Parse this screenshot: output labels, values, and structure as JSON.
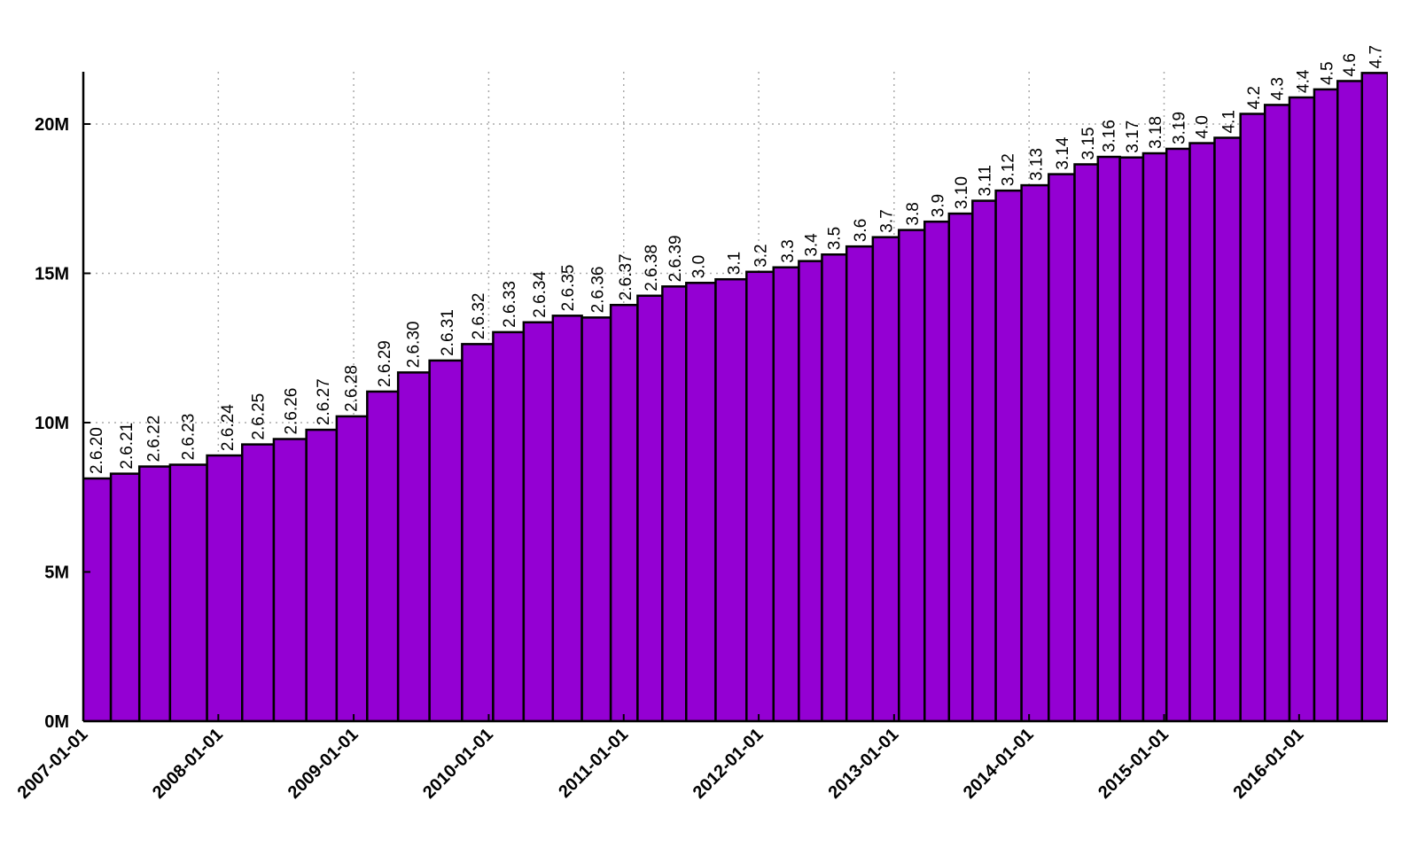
{
  "chart_data": {
    "type": "bar",
    "categories": [
      "2.6.20",
      "2.6.21",
      "2.6.22",
      "2.6.23",
      "2.6.24",
      "2.6.25",
      "2.6.26",
      "2.6.27",
      "2.6.28",
      "2.6.29",
      "2.6.30",
      "2.6.31",
      "2.6.32",
      "2.6.33",
      "2.6.34",
      "2.6.35",
      "2.6.36",
      "2.6.37",
      "2.6.38",
      "2.6.39",
      "3.0",
      "3.1",
      "3.2",
      "3.3",
      "3.4",
      "3.5",
      "3.6",
      "3.7",
      "3.8",
      "3.9",
      "3.10",
      "3.11",
      "3.12",
      "3.13",
      "3.14",
      "3.15",
      "3.16",
      "3.17",
      "3.18",
      "3.19",
      "4.0",
      "4.1",
      "4.2",
      "4.3",
      "4.4",
      "4.5",
      "4.6",
      "4.7"
    ],
    "x": [
      "2007-02-04",
      "2007-04-26",
      "2007-07-08",
      "2007-10-09",
      "2008-01-24",
      "2008-04-16",
      "2008-07-13",
      "2008-10-09",
      "2008-12-24",
      "2009-03-23",
      "2009-06-09",
      "2009-09-09",
      "2009-12-02",
      "2010-02-24",
      "2010-05-16",
      "2010-08-01",
      "2010-10-20",
      "2011-01-04",
      "2011-03-14",
      "2011-05-18",
      "2011-07-21",
      "2011-10-24",
      "2012-01-04",
      "2012-03-18",
      "2012-05-20",
      "2012-07-21",
      "2012-09-30",
      "2012-12-10",
      "2013-02-18",
      "2013-04-28",
      "2013-06-30",
      "2013-09-02",
      "2013-11-03",
      "2014-01-19",
      "2014-03-30",
      "2014-06-08",
      "2014-08-03",
      "2014-10-05",
      "2014-12-07",
      "2015-02-08",
      "2015-04-12",
      "2015-06-22",
      "2015-08-30",
      "2015-11-01",
      "2016-01-10",
      "2016-03-14",
      "2016-05-15",
      "2016-07-24"
    ],
    "values": [
      8.13,
      8.29,
      8.53,
      8.59,
      8.9,
      9.27,
      9.45,
      9.76,
      10.21,
      11.04,
      11.68,
      12.08,
      12.63,
      13.03,
      13.36,
      13.58,
      13.52,
      13.94,
      14.25,
      14.56,
      14.68,
      14.8,
      15.05,
      15.2,
      15.41,
      15.63,
      15.9,
      16.21,
      16.45,
      16.73,
      17.0,
      17.43,
      17.77,
      17.95,
      18.32,
      18.65,
      18.9,
      18.88,
      19.02,
      19.17,
      19.36,
      19.54,
      20.34,
      20.64,
      20.89,
      21.16,
      21.44,
      21.71
    ],
    "color": "#9400d3",
    "xlim": [
      "2007-01-01",
      "2016-08-28"
    ],
    "xticks": [
      "2007-01-01",
      "2008-01-01",
      "2009-01-01",
      "2010-01-01",
      "2011-01-01",
      "2012-01-01",
      "2013-01-01",
      "2014-01-01",
      "2015-01-01",
      "2016-01-01"
    ],
    "ylim": [
      0,
      21.75
    ],
    "yticks": [
      {
        "value": 0,
        "label": "0M"
      },
      {
        "value": 5,
        "label": "5M"
      },
      {
        "value": 10,
        "label": "10M"
      },
      {
        "value": 15,
        "label": "15M"
      },
      {
        "value": 20,
        "label": "20M"
      }
    ],
    "grid": true
  }
}
